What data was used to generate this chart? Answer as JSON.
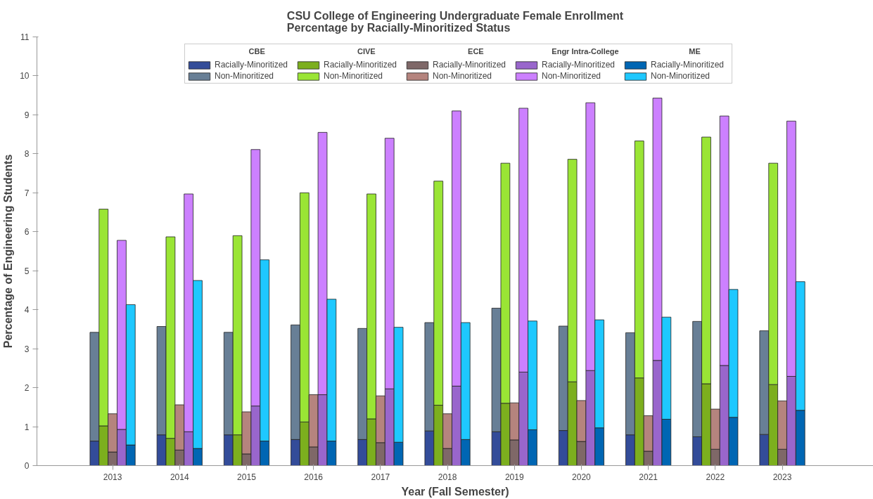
{
  "chart_data": [
    {
      "type": "bar",
      "stacked": true,
      "title": "CSU College of Engineering Undergraduate Female Enrollment\nPercentage by Racially-Minoritized Status",
      "xlabel": "Year (Fall Semester)",
      "ylabel": "Percentage of Engineering Students",
      "legend_title": "CBE",
      "categories": [
        "2013",
        "2014",
        "2015",
        "2016",
        "2017",
        "2018",
        "2019",
        "2020",
        "2021",
        "2022",
        "2023"
      ],
      "ylim": [
        0,
        11
      ],
      "yticks": [
        0,
        1,
        2,
        3,
        4,
        5,
        6,
        7,
        8,
        9,
        10,
        11
      ],
      "grid": false,
      "legend": "top",
      "series": [
        {
          "name": "Racially-Minoritized",
          "color": "#334c99",
          "values": [
            0.63,
            0.79,
            0.79,
            0.67,
            0.67,
            0.89,
            0.87,
            0.9,
            0.79,
            0.74,
            0.8
          ]
        },
        {
          "name": "Non-Minoritized",
          "color": "#687f96",
          "values": [
            2.79,
            2.78,
            2.63,
            2.94,
            2.85,
            2.78,
            3.17,
            2.68,
            2.62,
            2.96,
            2.66
          ]
        }
      ]
    },
    {
      "type": "bar",
      "stacked": true,
      "legend_title": "CIVE",
      "categories": [
        "2013",
        "2014",
        "2015",
        "2016",
        "2017",
        "2018",
        "2019",
        "2020",
        "2021",
        "2022",
        "2023"
      ],
      "ylim": [
        0,
        11
      ],
      "tick_labels": false,
      "legend": "top",
      "series": [
        {
          "name": "Racially-Minoritized",
          "color": "#7caf1e",
          "values": [
            1.02,
            0.7,
            0.79,
            1.12,
            1.2,
            1.55,
            1.6,
            2.15,
            2.25,
            2.1,
            2.08
          ]
        },
        {
          "name": "Non-Minoritized",
          "color": "#9ae535",
          "values": [
            5.56,
            5.17,
            5.11,
            5.88,
            5.77,
            5.75,
            6.16,
            5.71,
            6.08,
            6.33,
            5.68
          ]
        }
      ]
    },
    {
      "type": "bar",
      "stacked": true,
      "legend_title": "ECE",
      "categories": [
        "2013",
        "2014",
        "2015",
        "2016",
        "2017",
        "2018",
        "2019",
        "2020",
        "2021",
        "2022",
        "2023"
      ],
      "ylim": [
        0,
        11
      ],
      "tick_labels": false,
      "legend": "top",
      "series": [
        {
          "name": "Racially-Minoritized",
          "color": "#7f6868",
          "values": [
            0.35,
            0.4,
            0.3,
            0.48,
            0.59,
            0.44,
            0.66,
            0.62,
            0.37,
            0.42,
            0.42
          ]
        },
        {
          "name": "Non-Minoritized",
          "color": "#b5847e",
          "values": [
            0.98,
            1.16,
            1.08,
            1.34,
            1.2,
            0.89,
            0.95,
            1.05,
            0.91,
            1.03,
            1.24
          ]
        }
      ]
    },
    {
      "type": "bar",
      "stacked": true,
      "legend_title": "Engr Intra-College",
      "categories": [
        "2013",
        "2014",
        "2015",
        "2016",
        "2017",
        "2018",
        "2019",
        "2020",
        "2021",
        "2022",
        "2023"
      ],
      "ylim": [
        0,
        11
      ],
      "tick_labels": false,
      "legend": "top",
      "series": [
        {
          "name": "Racially-Minoritized",
          "color": "#9966cc",
          "values": [
            0.93,
            0.87,
            1.53,
            1.82,
            1.97,
            2.04,
            2.4,
            2.44,
            2.7,
            2.57,
            2.29
          ]
        },
        {
          "name": "Non-Minoritized",
          "color": "#cc80ff",
          "values": [
            4.85,
            6.1,
            6.58,
            6.73,
            6.43,
            7.06,
            6.77,
            6.87,
            6.73,
            6.4,
            6.55
          ]
        }
      ]
    },
    {
      "type": "bar",
      "stacked": true,
      "legend_title": "ME",
      "categories": [
        "2013",
        "2014",
        "2015",
        "2016",
        "2017",
        "2018",
        "2019",
        "2020",
        "2021",
        "2022",
        "2023"
      ],
      "ylim": [
        0,
        11
      ],
      "tick_labels": false,
      "legend": "top",
      "series": [
        {
          "name": "Racially-Minoritized",
          "color": "#0066b3",
          "values": [
            0.53,
            0.44,
            0.63,
            0.63,
            0.6,
            0.67,
            0.92,
            0.97,
            1.19,
            1.24,
            1.42
          ]
        },
        {
          "name": "Non-Minoritized",
          "color": "#1ec8ff",
          "values": [
            3.6,
            4.31,
            4.65,
            3.64,
            2.95,
            3.0,
            2.79,
            2.77,
            2.62,
            3.28,
            3.3
          ]
        }
      ]
    }
  ]
}
